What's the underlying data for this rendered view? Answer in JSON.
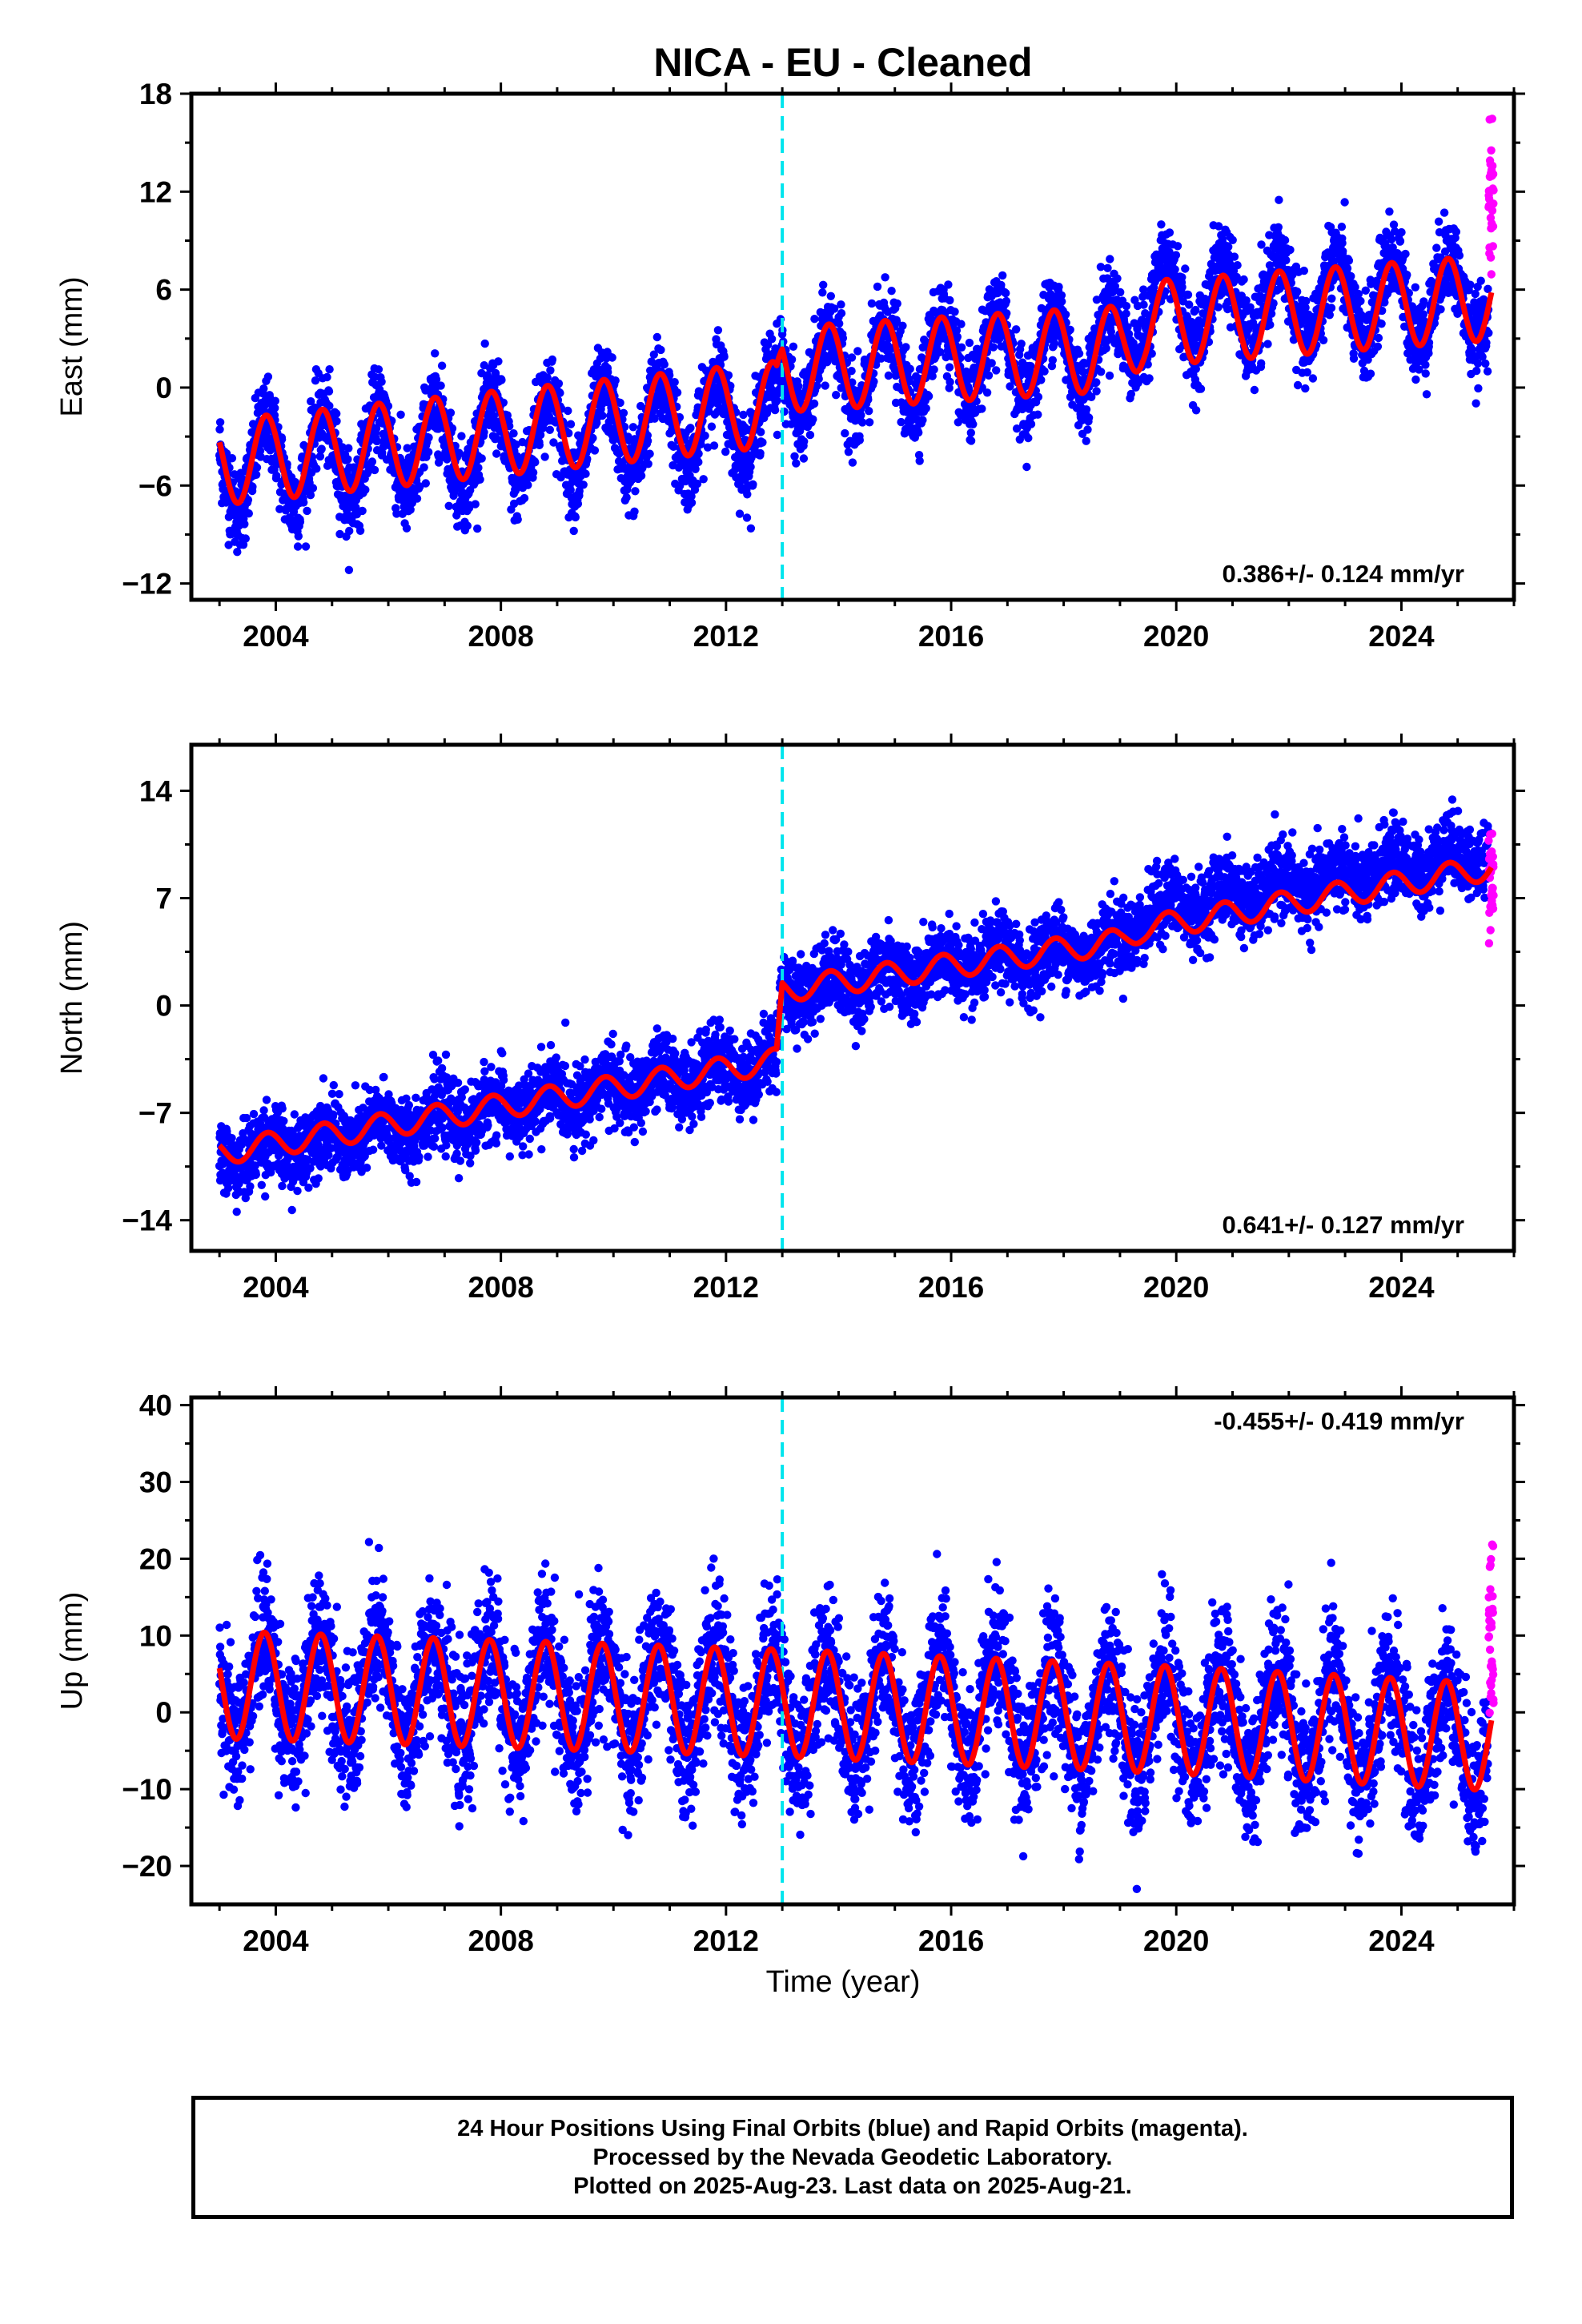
{
  "title": "NICA  - EU - Cleaned",
  "xlabel": "Time (year)",
  "caption": {
    "line1": "24 Hour Positions Using Final Orbits (blue) and Rapid Orbits (magenta).",
    "line2": "Processed by the Nevada Geodetic Laboratory.",
    "line3": "Plotted on 2025-Aug-23. Last data on 2025-Aug-21."
  },
  "colors": {
    "final_orbits": "#0000ff",
    "rapid_orbits": "#ff00ff",
    "model": "#ff0000",
    "event_line": "#00e5ee"
  },
  "chart_data": [
    {
      "type": "scatter",
      "ylabel": "East (mm)",
      "rate_label": "0.386+/- 0.124 mm/yr",
      "rate_position": "bottom-right",
      "xlim": [
        2002.5,
        2026.0
      ],
      "ylim": [
        -13,
        18
      ],
      "xticks": [
        2004,
        2008,
        2012,
        2016,
        2020,
        2024
      ],
      "yticks": [
        -12,
        -6,
        0,
        6,
        12,
        18
      ],
      "event_line_x": 2013.0,
      "series": [
        {
          "type": "scatter",
          "color": "#0000ff",
          "start": 2003.0,
          "end": 2025.55,
          "trend": [
            [
              2003.0,
              -5.0
            ],
            [
              2012.9,
              -1.6
            ],
            [
              2013.0,
              0.6
            ],
            [
              2019.0,
              2.6
            ],
            [
              2019.4,
              5.0
            ],
            [
              2025.55,
              5.6
            ]
          ],
          "annual_amplitude": 2.6,
          "phase": 0.58,
          "scatter_sd": 1.3
        },
        {
          "type": "scatter",
          "color": "#ff00ff",
          "start": 2025.55,
          "end": 2025.64,
          "mean": 11.0,
          "scatter_sd": 2.2
        },
        {
          "type": "line",
          "color": "#ff0000",
          "start": 2003.0,
          "end": 2025.6,
          "trend": [
            [
              2003.0,
              -4.6
            ],
            [
              2012.9,
              -1.0
            ],
            [
              2013.0,
              1.1
            ],
            [
              2019.0,
              2.4
            ],
            [
              2019.4,
              3.9
            ],
            [
              2025.6,
              5.5
            ]
          ],
          "annual_amplitude": 2.6,
          "phase": 0.58
        }
      ]
    },
    {
      "type": "scatter",
      "ylabel": "North (mm)",
      "rate_label": "0.641+/- 0.127 mm/yr",
      "rate_position": "bottom-right",
      "xlim": [
        2002.5,
        2026.0
      ],
      "ylim": [
        -16,
        17
      ],
      "xticks": [
        2004,
        2008,
        2012,
        2016,
        2020,
        2024
      ],
      "yticks": [
        -14,
        -7,
        0,
        7,
        14
      ],
      "event_line_x": 2013.0,
      "series": [
        {
          "type": "scatter",
          "color": "#0000ff",
          "start": 2003.0,
          "end": 2025.55,
          "trend": [
            [
              2003.0,
              -10.0
            ],
            [
              2012.9,
              -3.6
            ],
            [
              2013.0,
              1.0
            ],
            [
              2019.0,
              4.0
            ],
            [
              2019.4,
              6.0
            ],
            [
              2025.55,
              10.0
            ]
          ],
          "annual_amplitude": 0.8,
          "phase": 0.6,
          "scatter_sd": 1.2
        },
        {
          "type": "scatter",
          "color": "#ff00ff",
          "start": 2025.55,
          "end": 2025.64,
          "mean": 8.0,
          "scatter_sd": 1.3
        },
        {
          "type": "line",
          "color": "#ff0000",
          "start": 2003.0,
          "end": 2025.6,
          "trend": [
            [
              2003.0,
              -9.6
            ],
            [
              2012.9,
              -3.6
            ],
            [
              2013.0,
              1.0
            ],
            [
              2019.0,
              4.2
            ],
            [
              2019.4,
              5.0
            ],
            [
              2025.6,
              9.0
            ]
          ],
          "annual_amplitude": 0.8,
          "phase": 0.6
        }
      ]
    },
    {
      "type": "scatter",
      "ylabel": "Up (mm)",
      "rate_label": "-0.455+/- 0.419 mm/yr",
      "rate_position": "top-right",
      "xlim": [
        2002.5,
        2026.0
      ],
      "ylim": [
        -25,
        41
      ],
      "xticks": [
        2004,
        2008,
        2012,
        2016,
        2020,
        2024
      ],
      "yticks": [
        -20,
        -10,
        0,
        10,
        20,
        30,
        40
      ],
      "event_line_x": 2013.0,
      "series": [
        {
          "type": "scatter",
          "color": "#0000ff",
          "start": 2003.0,
          "end": 2025.55,
          "trend": [
            [
              2003.0,
              3.6
            ],
            [
              2013.0,
              1.2
            ],
            [
              2020.0,
              -1.0
            ],
            [
              2025.55,
              -3.2
            ]
          ],
          "annual_amplitude": 7.0,
          "phase": 0.55,
          "scatter_sd": 4.5
        },
        {
          "type": "scatter",
          "color": "#ff00ff",
          "start": 2025.55,
          "end": 2025.64,
          "mean": 10.0,
          "scatter_sd": 7.0
        },
        {
          "type": "line",
          "color": "#ff0000",
          "start": 2003.0,
          "end": 2025.6,
          "trend": [
            [
              2003.0,
              3.6
            ],
            [
              2013.0,
              1.2
            ],
            [
              2020.0,
              -1.0
            ],
            [
              2025.6,
              -3.2
            ]
          ],
          "annual_amplitude": 7.0,
          "phase": 0.55
        }
      ]
    }
  ]
}
